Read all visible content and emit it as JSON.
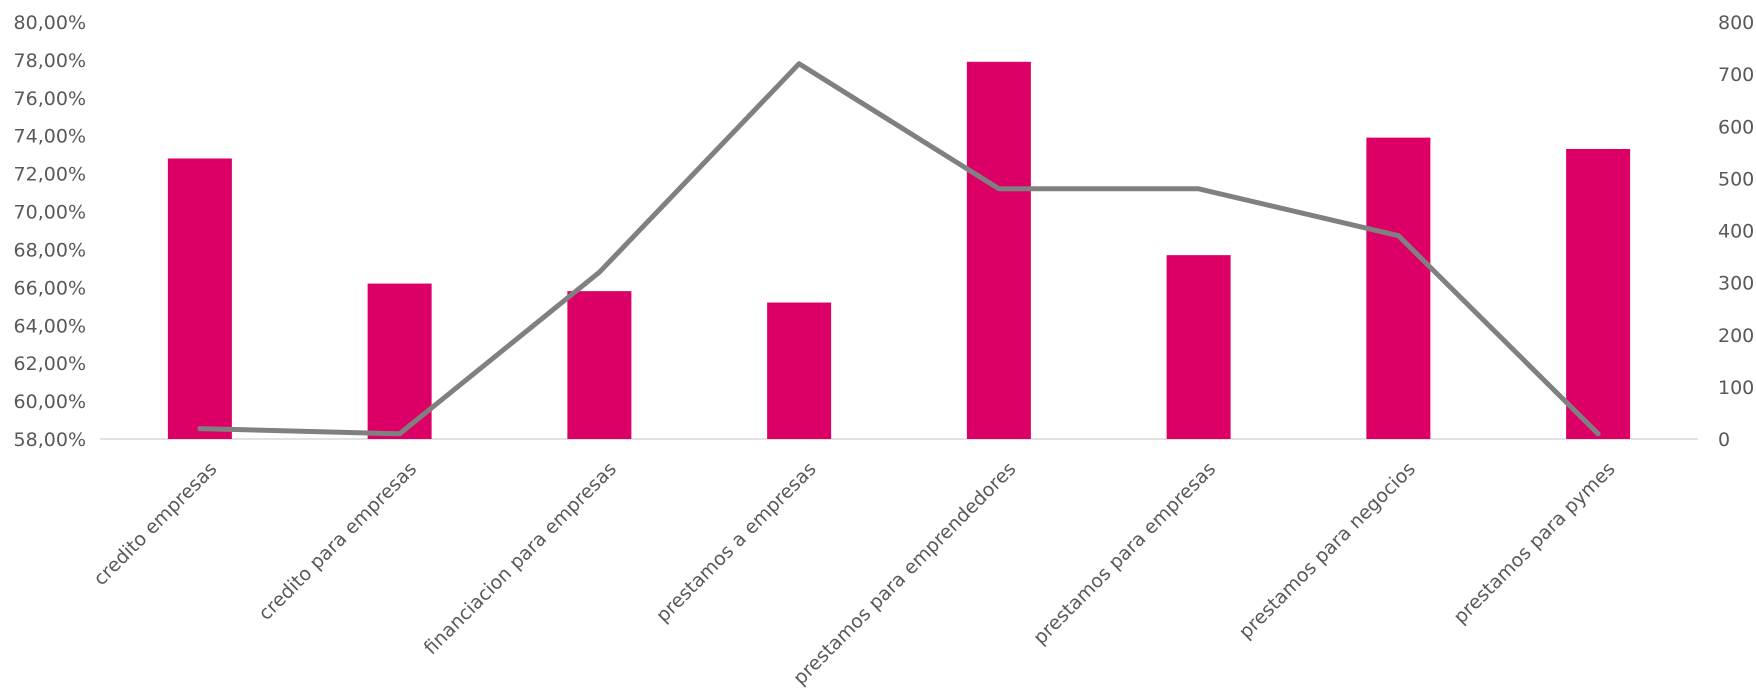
{
  "chart_data": {
    "type": "bar",
    "title": "",
    "xlabel": "",
    "ylabel": "",
    "y2label": "",
    "categories": [
      "credito empresas",
      "credito para empresas",
      "financiacion para empresas",
      "prestamos a empresas",
      "prestamos para emprendedores",
      "prestamos para empresas",
      "prestamos para negocios",
      "prestamos para pymes"
    ],
    "series": [
      {
        "type": "bar",
        "axis": "left",
        "color": "#DC0066",
        "values": [
          72.8,
          66.2,
          65.8,
          65.2,
          77.9,
          67.7,
          73.9,
          73.3
        ]
      },
      {
        "type": "line",
        "axis": "right",
        "color": "#808080",
        "values": [
          20,
          10,
          320,
          720,
          480,
          480,
          390,
          10
        ]
      }
    ],
    "ylim": [
      58,
      80
    ],
    "y_ticks": [
      "58,00%",
      "60,00%",
      "62,00%",
      "64,00%",
      "66,00%",
      "68,00%",
      "70,00%",
      "72,00%",
      "74,00%",
      "76,00%",
      "78,00%",
      "80,00%"
    ],
    "y2lim": [
      0,
      800
    ],
    "y2_ticks": [
      "0",
      "100",
      "200",
      "300",
      "400",
      "500",
      "600",
      "700",
      "800"
    ],
    "grid": false,
    "legend": "none"
  }
}
